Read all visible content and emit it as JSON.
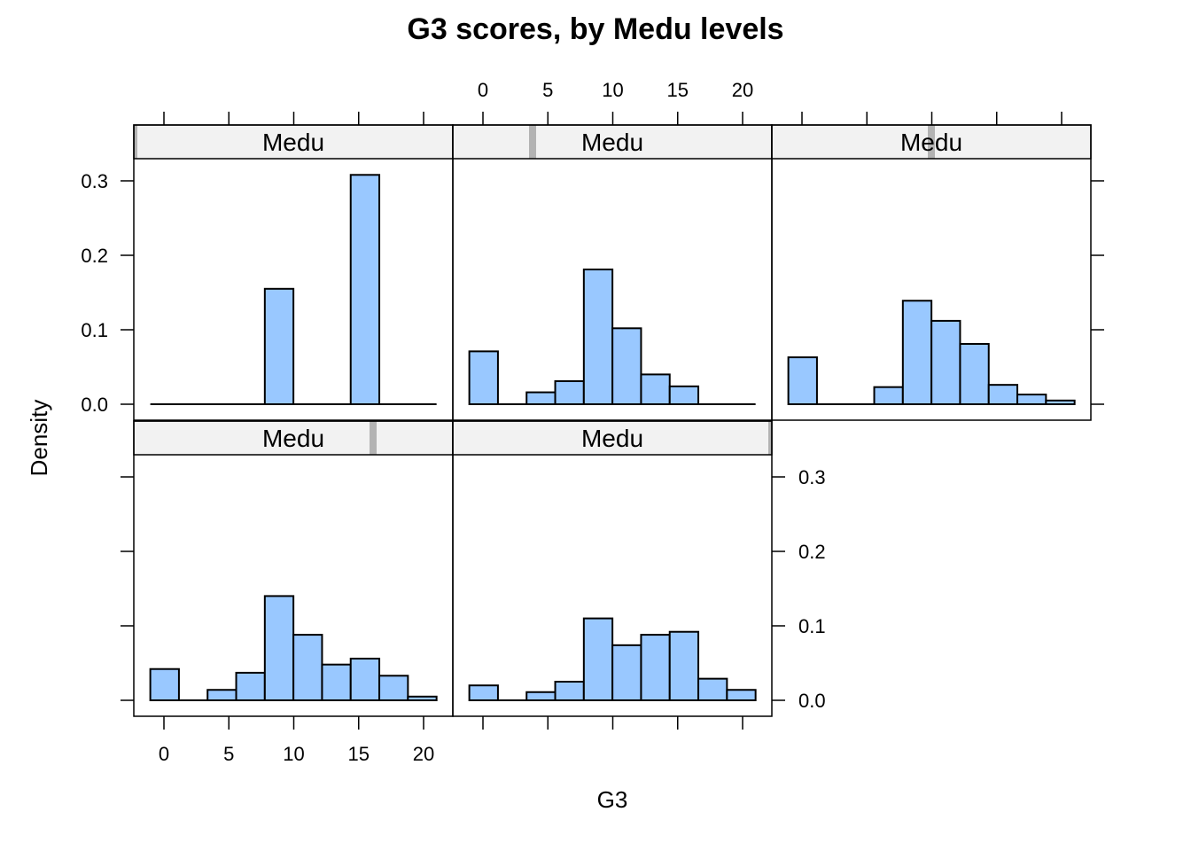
{
  "chart_data": {
    "type": "bar",
    "subtype": "histogram",
    "title": "G3 scores, by Medu levels",
    "xlabel": "G3",
    "ylabel": "Density",
    "xlim": [
      -1.05,
      21
    ],
    "ylim": [
      0,
      0.33
    ],
    "x_ticks": [
      "0",
      "5",
      "10",
      "15",
      "20"
    ],
    "x_tick_values": [
      0,
      5,
      10,
      15,
      20
    ],
    "y_ticks": [
      "0.0",
      "0.1",
      "0.2",
      "0.3"
    ],
    "y_tick_values": [
      0,
      0.1,
      0.2,
      0.3
    ],
    "bin_edges": [
      -1.05,
      1.155,
      3.36,
      5.565,
      7.77,
      9.975,
      12.18,
      14.385,
      16.59,
      18.795,
      21
    ],
    "fill_color": "#99c8ff",
    "strip_color": "#f2f2f2",
    "strip_indicator_color": "#b3b3b3",
    "panels": [
      {
        "strip_label": "Medu",
        "level_fraction": 0.0,
        "values": [
          0,
          0,
          0,
          0,
          0.155,
          0,
          0,
          0.308,
          0,
          0
        ]
      },
      {
        "strip_label": "Medu",
        "level_fraction": 0.25,
        "values": [
          0.071,
          0,
          0.016,
          0.031,
          0.181,
          0.102,
          0.04,
          0.024,
          0,
          0
        ]
      },
      {
        "strip_label": "Medu",
        "level_fraction": 0.5,
        "values": [
          0.063,
          0,
          0,
          0.023,
          0.139,
          0.112,
          0.081,
          0.026,
          0.013,
          0.005
        ]
      },
      {
        "strip_label": "Medu",
        "level_fraction": 0.75,
        "values": [
          0.042,
          0,
          0.014,
          0.037,
          0.14,
          0.088,
          0.048,
          0.056,
          0.033,
          0.005
        ]
      },
      {
        "strip_label": "Medu",
        "level_fraction": 1.0,
        "values": [
          0.02,
          0,
          0.011,
          0.025,
          0.11,
          0.074,
          0.088,
          0.092,
          0.029,
          0.014
        ]
      }
    ]
  }
}
